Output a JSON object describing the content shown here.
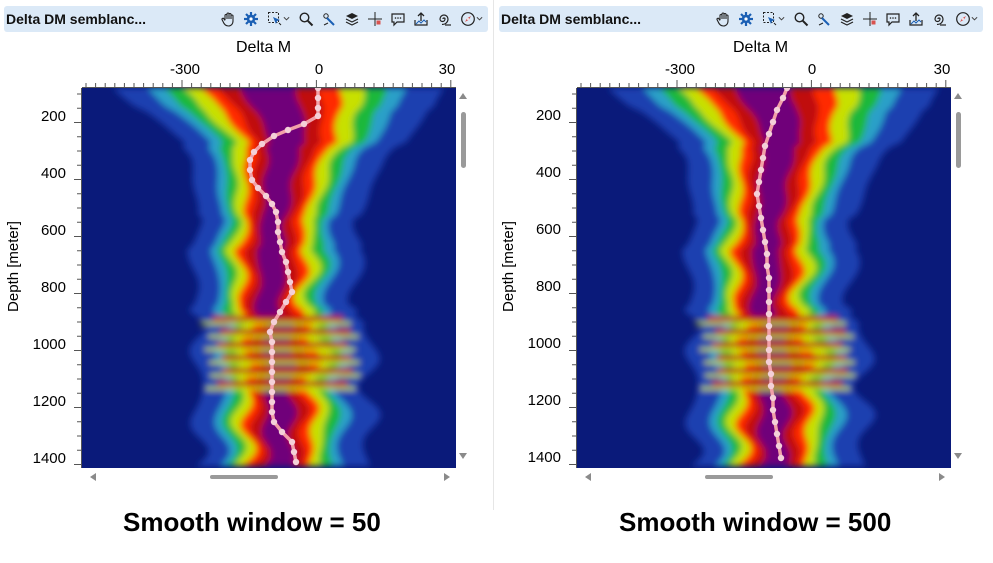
{
  "panels": [
    {
      "title": "Delta DM semblanc...",
      "plot_title": "Delta M",
      "x_ticks": [
        "-300",
        "0",
        "30"
      ],
      "y_label": "Depth [meter]",
      "y_ticks": [
        "200",
        "400",
        "600",
        "800",
        "1000",
        "1200",
        "1400"
      ],
      "caption": "Smooth window = 50"
    },
    {
      "title": "Delta DM semblanc...",
      "plot_title": "Delta M",
      "x_ticks": [
        "-300",
        "0",
        "30"
      ],
      "y_label": "Depth [meter]",
      "y_ticks": [
        "200",
        "400",
        "600",
        "800",
        "1000",
        "1200",
        "1400"
      ],
      "caption": "Smooth window = 500"
    }
  ],
  "toolbar_icons": [
    "pan-hand-icon",
    "gear-icon",
    "select-region-icon",
    "zoom-icon",
    "pick-icon",
    "layers-icon",
    "crosshair-icon",
    "comment-icon",
    "export-icon",
    "spiral-icon",
    "compass-icon"
  ],
  "colors": {
    "titlebar": "#dbe9f7",
    "colormap": [
      "#0a1a7a",
      "#1c3fb0",
      "#2aa0c8",
      "#1fb83a",
      "#c8e000",
      "#ff2a00",
      "#c01010",
      "#70007a"
    ],
    "pick_line": "#f2a0a8",
    "pick_point": "#f4d0d8"
  }
}
